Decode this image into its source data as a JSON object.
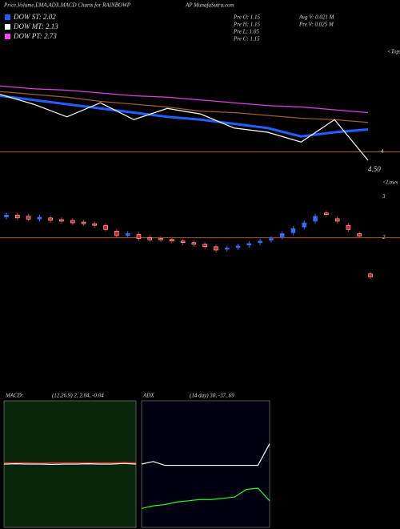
{
  "header": {
    "title": "Price,Volume,EMA,ADX,MACD Charts for RAINBOWP",
    "site": "AP MunafaSutra.com"
  },
  "legend": [
    {
      "label": "DOW ST: 2.02",
      "color": "#2060ff"
    },
    {
      "label": "DOW MT: 2.13",
      "color": "#ffffff"
    },
    {
      "label": "DOW PT: 2.73",
      "color": "#ff40ff"
    }
  ],
  "info": [
    "Pre  O: 1.15",
    "Pre  H: 1.15",
    "Pre  L: 1.05",
    "Pre  C: 1.15"
  ],
  "volume": [
    "Avg  V: 0.021 M",
    "Pre  V: 0.025 M"
  ],
  "chart_data": [
    {
      "type": "line",
      "annotations": [
        "<Tops",
        "4",
        "4.50"
      ],
      "ylim": [
        0,
        100
      ],
      "hline": {
        "value": 26,
        "color": "#b05a10"
      },
      "series": [
        {
          "color": "#e040e0",
          "values": [
            73,
            71,
            70,
            68,
            66,
            65,
            63,
            61,
            59,
            58,
            56,
            54
          ]
        },
        {
          "color": "#a0602a",
          "values": [
            69,
            67,
            65,
            62,
            60,
            58,
            55,
            54,
            52,
            50,
            49,
            47
          ]
        },
        {
          "color": "#2060ff",
          "values": [
            66,
            63,
            60,
            57,
            54,
            51,
            49,
            46,
            43,
            37,
            40,
            42
          ]
        },
        {
          "color": "#ffffff",
          "values": [
            67,
            60,
            51,
            61,
            49,
            57,
            53,
            43,
            40,
            33,
            49,
            20
          ]
        }
      ]
    },
    {
      "type": "candlestick",
      "annotations": [
        "<Lows"
      ],
      "ylim": [
        1,
        3.1
      ],
      "yticks": [
        2,
        3
      ],
      "hline": {
        "value": 2,
        "color": "#b05a10"
      },
      "up_color": "#3070ff",
      "down_color": "#e02020",
      "open": [
        2.5,
        2.55,
        2.52,
        2.45,
        2.48,
        2.44,
        2.42,
        2.38,
        2.34,
        2.3,
        2.16,
        2.05,
        2.08,
        2.0,
        1.98,
        1.96,
        1.92,
        1.88,
        1.84,
        1.78,
        1.72,
        1.76,
        1.82,
        1.88,
        1.94,
        2.02,
        2.12,
        2.26,
        2.4,
        2.6,
        2.46,
        2.3,
        2.1,
        1.12
      ],
      "close": [
        2.55,
        2.48,
        2.45,
        2.5,
        2.42,
        2.4,
        2.36,
        2.34,
        2.3,
        2.2,
        2.05,
        2.1,
        1.98,
        1.95,
        1.96,
        1.92,
        1.88,
        1.84,
        1.78,
        1.7,
        1.75,
        1.8,
        1.86,
        1.92,
        1.98,
        2.1,
        2.22,
        2.36,
        2.52,
        2.56,
        2.4,
        2.2,
        2.04,
        1.05
      ]
    },
    {
      "type": "line",
      "title": "MACD:",
      "subtitle": "(12,26,9) 2, 2.04, -0.04",
      "ylim": [
        0,
        4
      ],
      "background": "#0a260a",
      "series": [
        {
          "color": "#ffffff",
          "values": [
            2.0,
            2.01,
            2.0,
            2.0,
            1.99,
            2.0,
            2.0,
            2.01,
            2.0,
            2.0,
            2.02,
            2.0
          ]
        },
        {
          "color": "#ff3030",
          "values": [
            2.04,
            2.04,
            2.04,
            2.03,
            2.04,
            2.04,
            2.04,
            2.04,
            2.04,
            2.04,
            2.05,
            2.04
          ]
        }
      ]
    },
    {
      "type": "line",
      "title": "ADX",
      "subtitle": "(14 day) 30, -37, 69",
      "ylim": [
        0,
        100
      ],
      "background": "#000010",
      "series": [
        {
          "color": "#ffffff",
          "values": [
            50,
            52,
            49,
            49,
            49,
            49,
            49,
            49,
            49,
            49,
            49,
            66
          ]
        },
        {
          "color": "#20ff20",
          "values": [
            15,
            17,
            18,
            20,
            21,
            22,
            22,
            23,
            24,
            30,
            31,
            21
          ]
        }
      ]
    }
  ]
}
